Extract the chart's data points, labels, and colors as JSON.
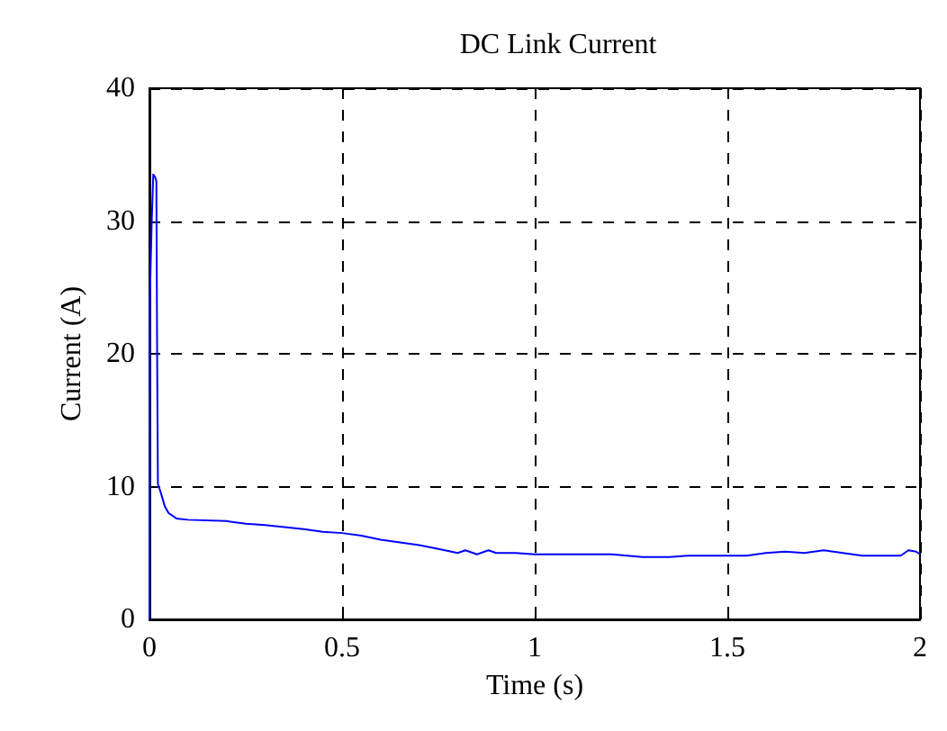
{
  "chart_data": {
    "type": "line",
    "title": "DC Link Current",
    "xlabel": "Time (s)",
    "ylabel": "Current (A)",
    "xlim": [
      0,
      2
    ],
    "xticks": [
      0,
      0.5,
      1,
      1.5,
      2
    ],
    "ylim": [
      0,
      40
    ],
    "yticks": [
      0,
      10,
      20,
      30,
      40
    ],
    "grid": true,
    "series": [
      {
        "color": "#0000ff",
        "x": [
          0,
          0.001,
          0.003,
          0.006,
          0.01,
          0.015,
          0.018,
          0.02,
          0.022,
          0.03,
          0.04,
          0.05,
          0.07,
          0.1,
          0.2,
          0.25,
          0.3,
          0.4,
          0.45,
          0.5,
          0.55,
          0.6,
          0.7,
          0.75,
          0.8,
          0.82,
          0.85,
          0.88,
          0.9,
          0.95,
          1.0,
          1.1,
          1.2,
          1.28,
          1.35,
          1.4,
          1.5,
          1.55,
          1.6,
          1.65,
          1.7,
          1.75,
          1.8,
          1.85,
          1.9,
          1.95,
          1.97,
          1.99,
          2.0
        ],
        "values": [
          0,
          24,
          24,
          30,
          33.5,
          33.3,
          33,
          20,
          10.2,
          9.5,
          8.5,
          8,
          7.6,
          7.5,
          7.4,
          7.2,
          7.1,
          6.8,
          6.6,
          6.5,
          6.3,
          6.0,
          5.6,
          5.3,
          5.0,
          5.2,
          4.9,
          5.2,
          5.0,
          5.0,
          4.9,
          4.9,
          4.9,
          4.7,
          4.7,
          4.8,
          4.8,
          4.8,
          5.0,
          5.1,
          5.0,
          5.2,
          5.0,
          4.8,
          4.8,
          4.8,
          5.2,
          5.1,
          4.9
        ]
      }
    ]
  }
}
